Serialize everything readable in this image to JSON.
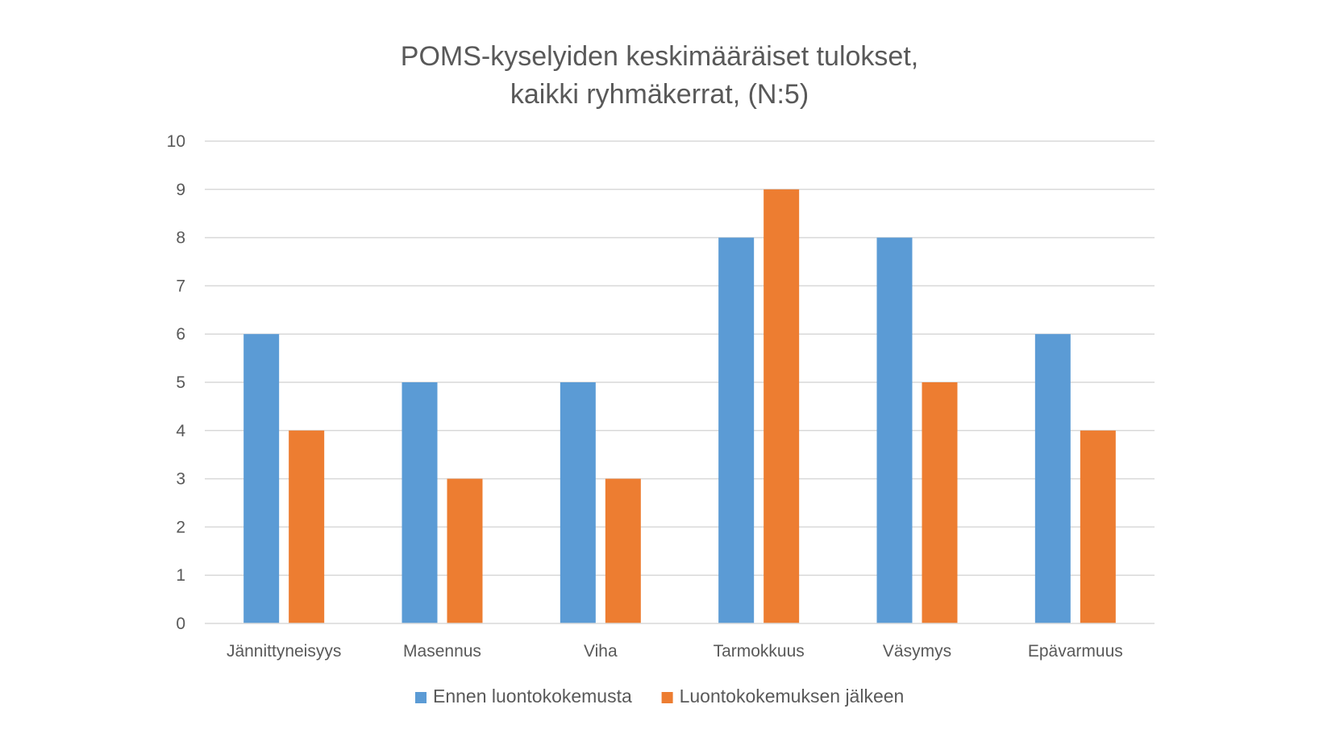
{
  "chart_data": {
    "type": "bar",
    "title": "POMS-kyselyiden keskimääräiset tulokset,",
    "subtitle": "kaikki ryhmäkerrat, (N:5)",
    "categories": [
      "Jännittyneisyys",
      "Masennus",
      "Viha",
      "Tarmokkuus",
      "Väsymys",
      "Epävarmuus"
    ],
    "series": [
      {
        "name": "Ennen luontokokemusta",
        "color": "#5b9bd5",
        "values": [
          6,
          5,
          5,
          8,
          8,
          6
        ]
      },
      {
        "name": "Luontokokemuksen jälkeen",
        "color": "#ed7d31",
        "values": [
          4,
          3,
          3,
          9,
          5,
          4
        ]
      }
    ],
    "xlabel": "",
    "ylabel": "",
    "ylim": [
      0,
      10
    ],
    "yticks": [
      "0",
      "1",
      "2",
      "3",
      "4",
      "5",
      "6",
      "7",
      "8",
      "9",
      "10"
    ],
    "grid": true,
    "legend_position": "bottom"
  }
}
